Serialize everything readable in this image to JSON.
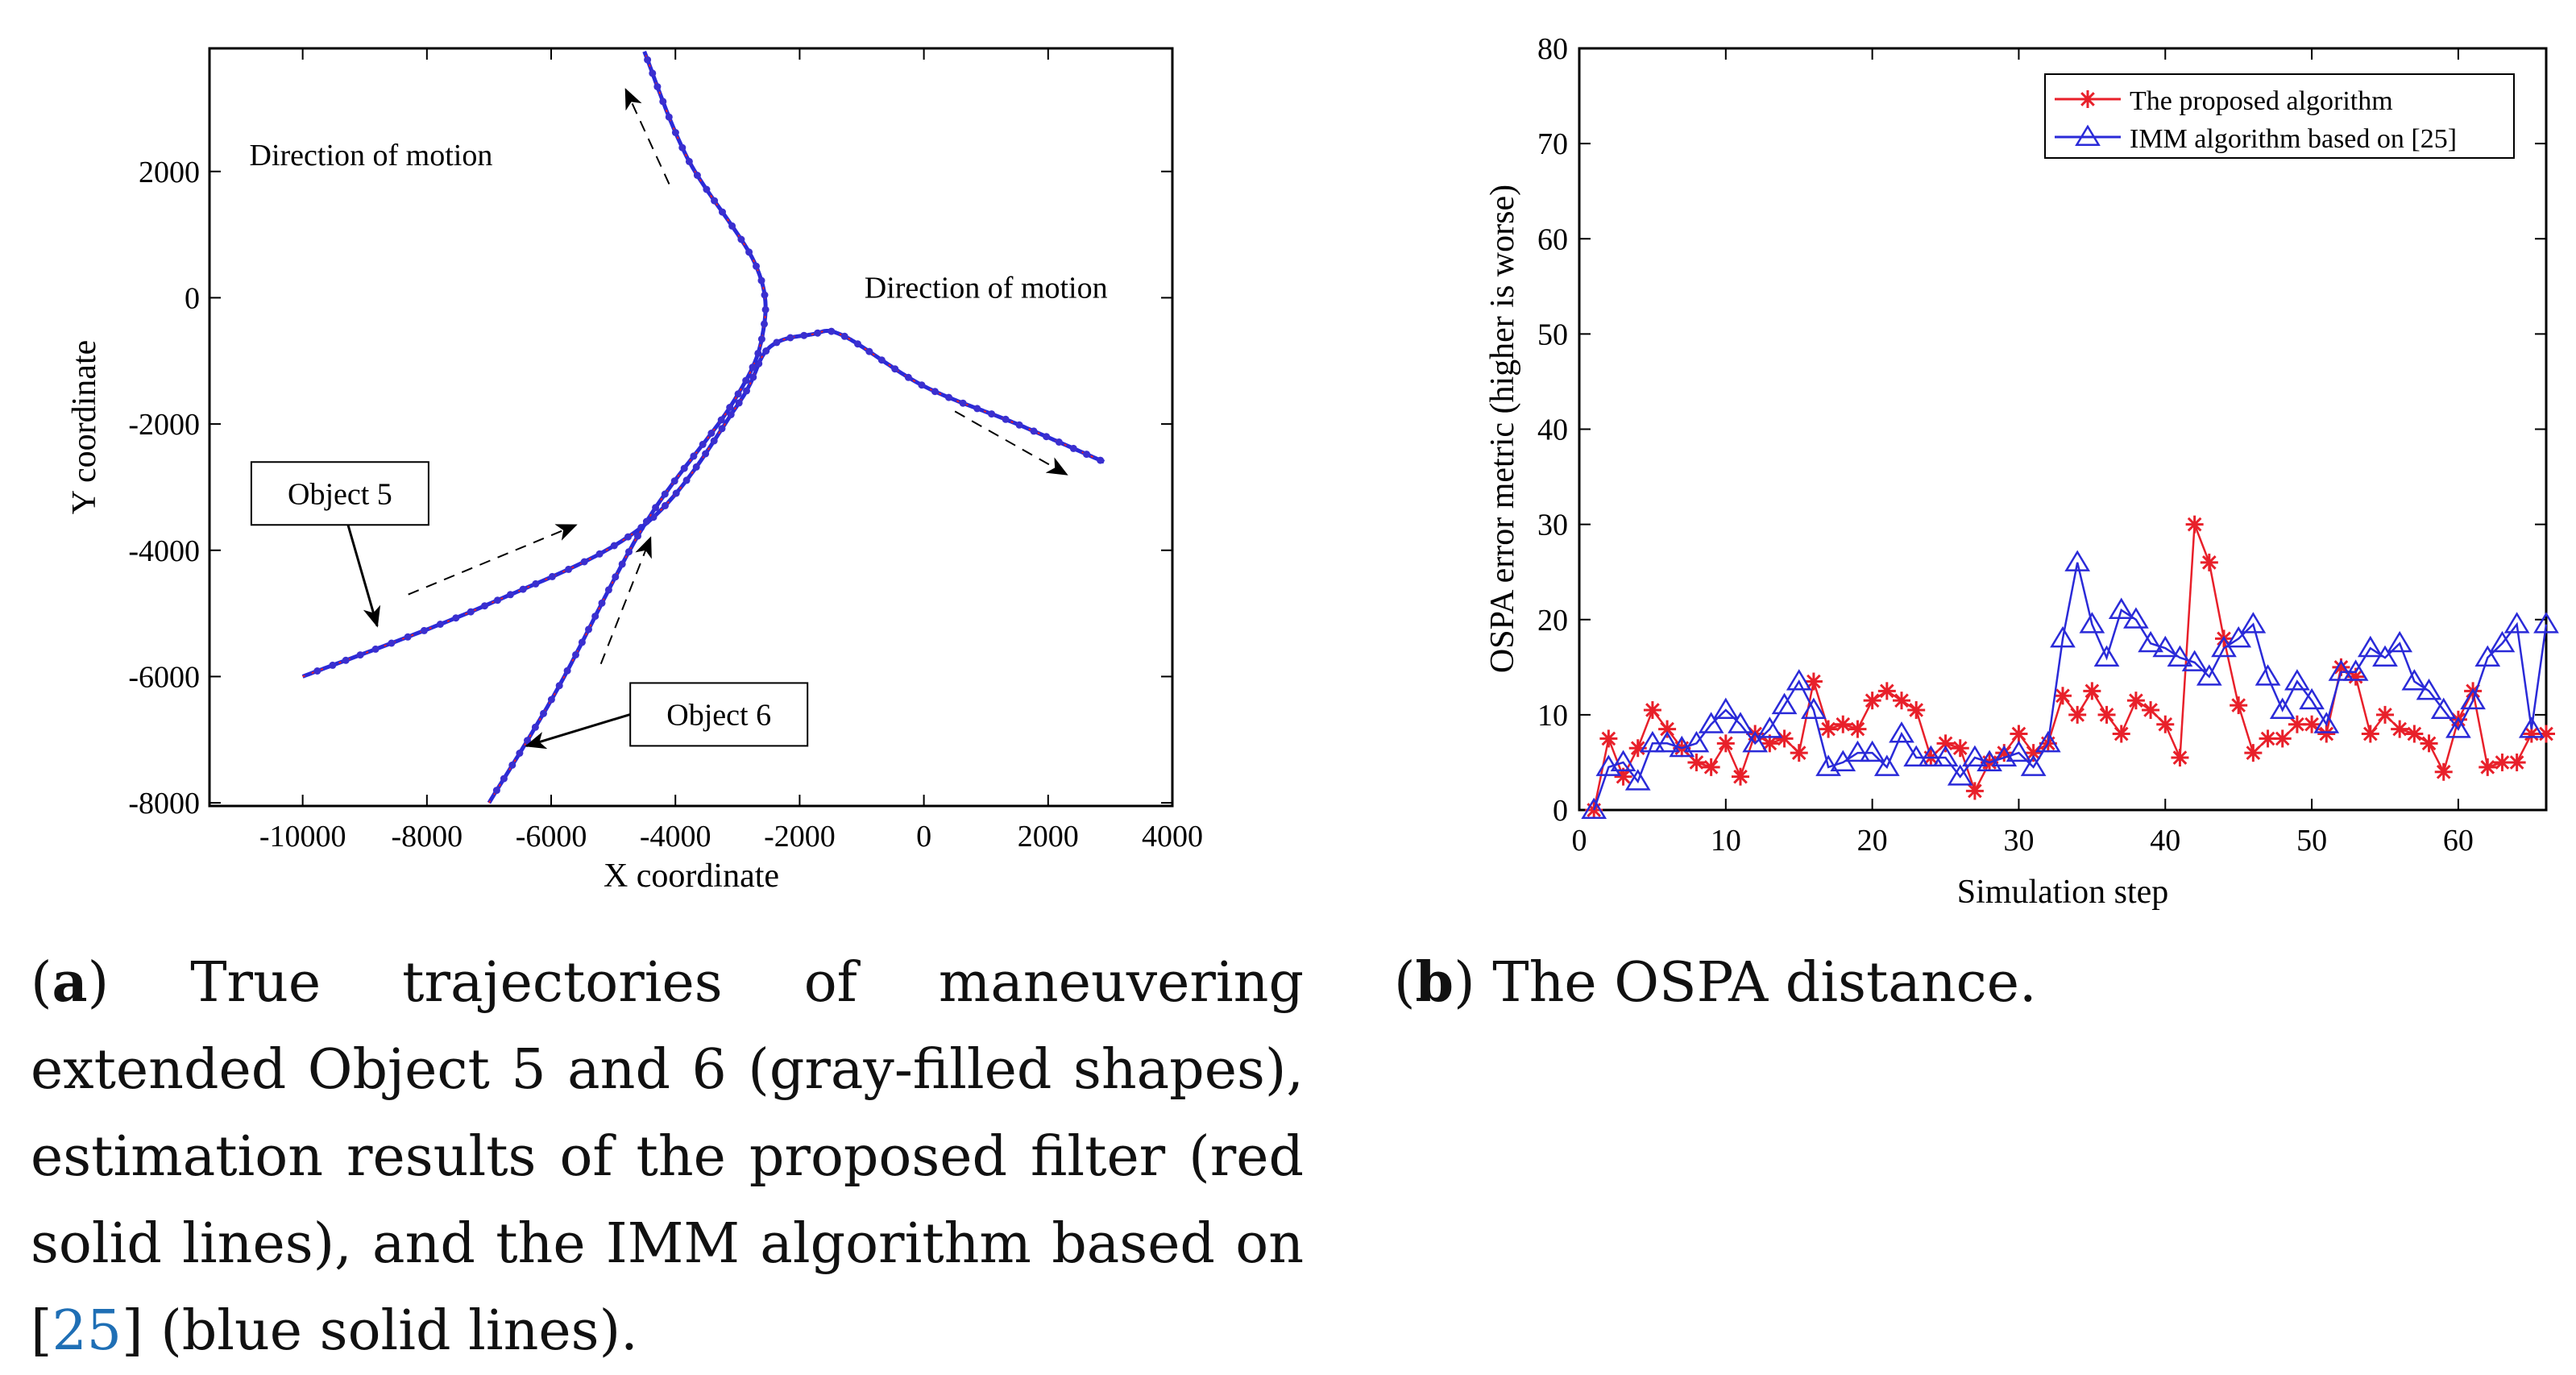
{
  "chart_data": [
    {
      "id": "a",
      "type": "line",
      "title": "",
      "xlabel": "X coordinate",
      "ylabel": "Y coordinate",
      "xlim": [
        -11500,
        4000
      ],
      "ylim": [
        -8050,
        3950
      ],
      "xticks": [
        -10000,
        -8000,
        -6000,
        -4000,
        -2000,
        0,
        2000,
        4000
      ],
      "xtick_labels": [
        "-10000",
        "-8000",
        "-6000",
        "-4000",
        "-2000",
        "0",
        "2000",
        "4000"
      ],
      "yticks": [
        2000,
        0,
        -2000,
        -4000,
        -6000,
        -8000
      ],
      "ytick_labels": [
        "2000",
        "0",
        "-2000",
        "-4000",
        "-6000",
        "-8000"
      ],
      "series": [
        {
          "name": "Object 5 trajectory",
          "x": [
            -10000,
            -7000,
            -4500,
            -3000,
            -2500,
            -1800,
            -1300,
            0,
            1500,
            2900
          ],
          "y": [
            -6000,
            -4850,
            -3600,
            -1700,
            -800,
            -580,
            -600,
            -1400,
            -2000,
            -2600
          ]
        },
        {
          "name": "Object 6 trajectory",
          "x": [
            -7000,
            -5900,
            -4500,
            -3100,
            -2600,
            -2700,
            -3800,
            -4500
          ],
          "y": [
            -8000,
            -6200,
            -3600,
            -1700,
            -600,
            500,
            2200,
            3900
          ]
        }
      ],
      "annotations": [
        {
          "text": "Direction of motion",
          "x": -8900,
          "y": 2100
        },
        {
          "text": "Direction of motion",
          "x": 1000,
          "y": 0
        },
        {
          "text": "Object 5",
          "box_center": [
            -9400,
            -3100
          ],
          "arrow_to": [
            -8800,
            -5200
          ]
        },
        {
          "text": "Object 6",
          "box_center": [
            -3300,
            -6600
          ],
          "arrow_to": [
            -6400,
            -7100
          ]
        }
      ]
    },
    {
      "id": "b",
      "type": "line",
      "title": "",
      "xlabel": "Simulation step",
      "ylabel": "OSPA error metric (higher is worse)",
      "xlim": [
        0,
        66
      ],
      "ylim": [
        0,
        80
      ],
      "xticks": [
        0,
        10,
        20,
        30,
        40,
        50,
        60
      ],
      "xtick_labels": [
        "0",
        "10",
        "20",
        "30",
        "40",
        "50",
        "60"
      ],
      "yticks": [
        0,
        10,
        20,
        30,
        40,
        50,
        60,
        70,
        80
      ],
      "ytick_labels": [
        "0",
        "10",
        "20",
        "30",
        "40",
        "50",
        "60",
        "70",
        "80"
      ],
      "legend": "top-right",
      "x": [
        1,
        2,
        3,
        4,
        5,
        6,
        7,
        8,
        9,
        10,
        11,
        12,
        13,
        14,
        15,
        16,
        17,
        18,
        19,
        20,
        21,
        22,
        23,
        24,
        25,
        26,
        27,
        28,
        29,
        30,
        31,
        32,
        33,
        34,
        35,
        36,
        37,
        38,
        39,
        40,
        41,
        42,
        43,
        44,
        45,
        46,
        47,
        48,
        49,
        50,
        51,
        52,
        53,
        54,
        55,
        56,
        57,
        58,
        59,
        60,
        61,
        62,
        63,
        64,
        65,
        66
      ],
      "series": [
        {
          "name": "The proposed algorithm",
          "color": "#e8202a",
          "marker": "asterisk",
          "values": [
            0,
            7.5,
            3.5,
            6.5,
            10.5,
            8.5,
            6.5,
            5,
            4.5,
            7,
            3.5,
            8,
            7,
            7.5,
            6,
            13.5,
            8.5,
            9,
            8.5,
            11.5,
            12.5,
            11.5,
            10.5,
            5.5,
            7,
            6.5,
            2,
            5,
            6,
            8,
            6,
            7,
            12,
            10,
            12.5,
            10,
            8,
            11.5,
            10.5,
            9,
            5.5,
            30,
            26,
            18,
            11,
            6,
            7.5,
            7.5,
            9,
            9,
            8,
            15,
            14,
            8,
            10,
            8.5,
            8,
            7,
            4,
            9.5,
            12.5,
            4.5,
            5,
            5,
            8,
            8
          ]
        },
        {
          "name": "IMM algorithm based on [25]",
          "color": "#2a2ad8",
          "marker": "triangle",
          "values": [
            0,
            4.5,
            5,
            3,
            7,
            7,
            6.5,
            7,
            9,
            10.5,
            9,
            7,
            8.5,
            11,
            13.5,
            10.5,
            4.5,
            5,
            6,
            6,
            4.5,
            8,
            5.5,
            5.5,
            5.5,
            3.5,
            5.5,
            5,
            5.5,
            6,
            4.5,
            7,
            18,
            26,
            19.5,
            16,
            21,
            20,
            17.5,
            17,
            16,
            15.5,
            14,
            17,
            18,
            19.5,
            14,
            10.5,
            13.5,
            11.5,
            9,
            14.5,
            14.5,
            17,
            16,
            17.5,
            13.5,
            12.5,
            10.5,
            8.5,
            11.5,
            16,
            17.5,
            19.5,
            8.5,
            19.5
          ]
        }
      ]
    }
  ],
  "captions": {
    "a_label": "a",
    "a_text": "True trajectories of maneuvering extended Object 5 and 6 (gray-filled shapes), estimation results of the proposed filter (red solid lines), and the IMM algorithm based on [",
    "a_ref": "25",
    "a_text_end": "] (blue solid lines).",
    "b_label": "b",
    "b_text": "The OSPA distance."
  },
  "colors": {
    "red": "#e8202a",
    "blue": "#2a2ad8",
    "reference_link": "#1f6fb5"
  }
}
